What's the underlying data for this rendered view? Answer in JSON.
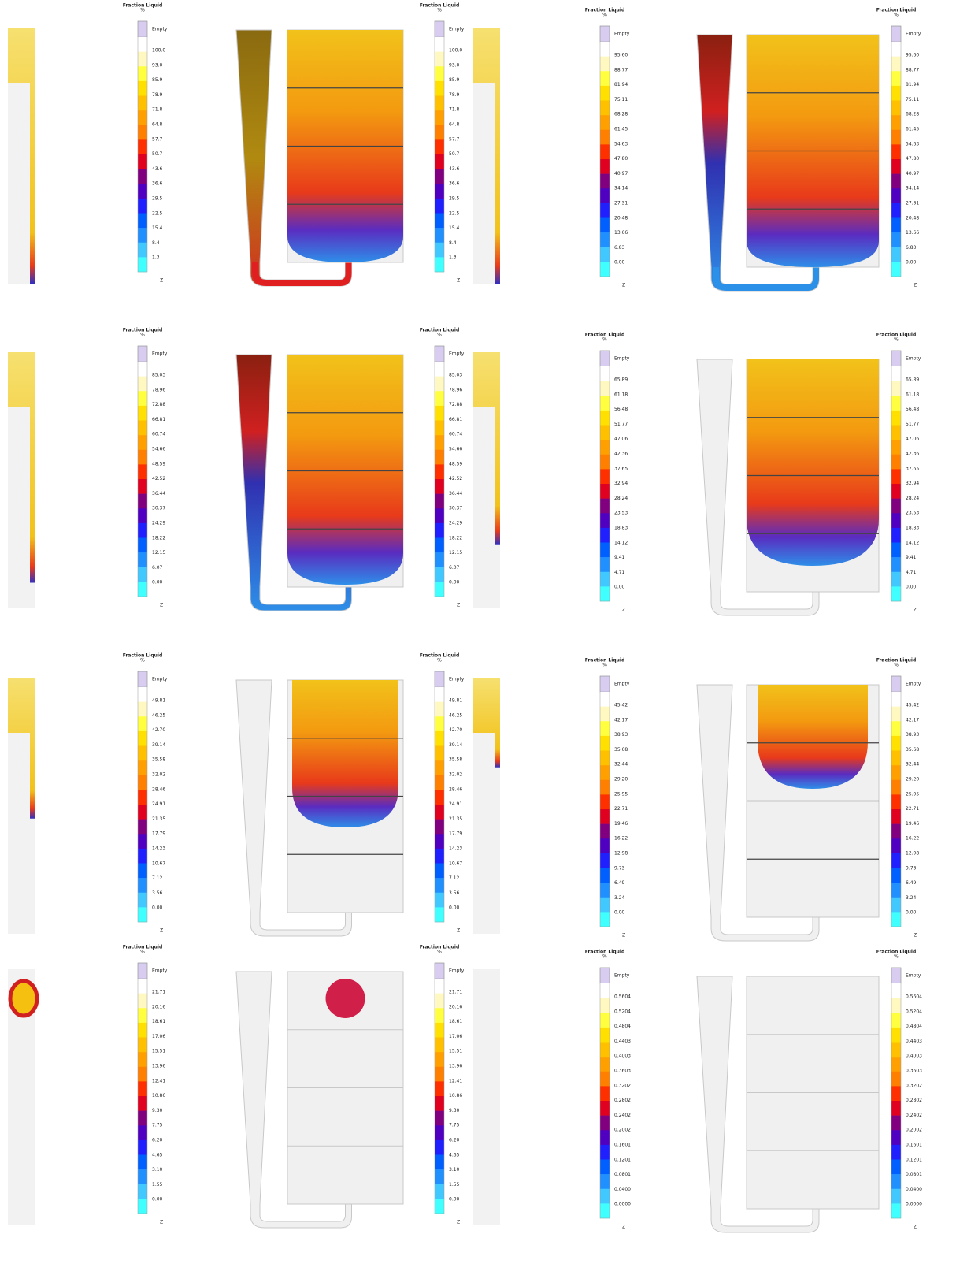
{
  "legend_title": "Fraction Liquid",
  "legend_unit": "%",
  "empty_label": "Empty",
  "axis_label": "Z",
  "rows": [
    {
      "left_scale": [
        "100.0",
        "93.0",
        "85.9",
        "78.9",
        "71.8",
        "64.8",
        "57.7",
        "50.7",
        "43.6",
        "36.6",
        "29.5",
        "22.5",
        "15.4",
        "8.4",
        "1.3"
      ],
      "right_scale": [
        "95.60",
        "88.77",
        "81.94",
        "75.11",
        "68.28",
        "61.45",
        "54.63",
        "47.80",
        "40.97",
        "34.14",
        "27.31",
        "20.48",
        "13.66",
        "6.83",
        "0.00"
      ]
    },
    {
      "left_scale": [
        "85.03",
        "78.96",
        "72.88",
        "66.81",
        "60.74",
        "54.66",
        "48.59",
        "42.52",
        "36.44",
        "30.37",
        "24.29",
        "18.22",
        "12.15",
        "6.07",
        "0.00"
      ],
      "right_scale": [
        "65.89",
        "61.18",
        "56.48",
        "51.77",
        "47.06",
        "42.36",
        "37.65",
        "32.94",
        "28.24",
        "23.53",
        "18.83",
        "14.12",
        "9.41",
        "4.71",
        "0.00"
      ]
    },
    {
      "left_scale": [
        "49.81",
        "46.25",
        "42.70",
        "39.14",
        "35.58",
        "32.02",
        "28.46",
        "24.91",
        "21.35",
        "17.79",
        "14.23",
        "10.67",
        "7.12",
        "3.56",
        "0.00"
      ],
      "right_scale": [
        "45.42",
        "42.17",
        "38.93",
        "35.68",
        "32.44",
        "29.20",
        "25.95",
        "22.71",
        "19.46",
        "16.22",
        "12.98",
        "9.73",
        "6.49",
        "3.24",
        "0.00"
      ]
    },
    {
      "left_scale": [
        "21.71",
        "20.16",
        "18.61",
        "17.06",
        "15.51",
        "13.96",
        "12.41",
        "10.86",
        "9.30",
        "7.75",
        "6.20",
        "4.65",
        "3.10",
        "1.55",
        "0.00"
      ],
      "right_scale": [
        "0.5604",
        "0.5204",
        "0.4804",
        "0.4403",
        "0.4003",
        "0.3603",
        "0.3202",
        "0.2802",
        "0.2402",
        "0.2002",
        "0.1601",
        "0.1201",
        "0.0801",
        "0.0400",
        "0.0000"
      ]
    }
  ]
}
